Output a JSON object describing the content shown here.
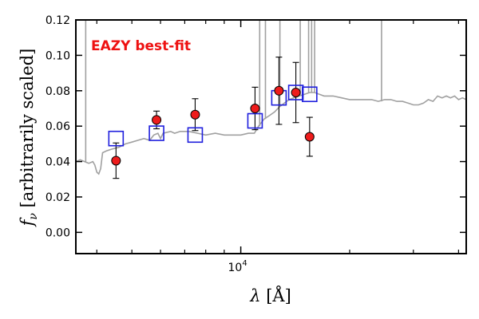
{
  "chart_data": {
    "type": "scatter",
    "annotation": "EAZY best-fit",
    "ylabel_symbol": "f",
    "ylabel_subscript": "ν",
    "ylabel_text": "[arbitrarily scaled]",
    "xlabel_symbol": "λ",
    "xlabel_unit": "[Å]",
    "x_scale": "log",
    "xlim": [
      3500,
      42000
    ],
    "ylim": [
      -0.012,
      0.12
    ],
    "y_ticks": [
      "0.00",
      "0.02",
      "0.04",
      "0.06",
      "0.08",
      "0.10",
      "0.12"
    ],
    "y_tick_values": [
      0.0,
      0.02,
      0.04,
      0.06,
      0.08,
      0.1,
      0.12
    ],
    "x_major_tick": {
      "value": 10000,
      "label_base": "10",
      "label_exp": "4"
    },
    "x_minor_ticks": [
      4000,
      5000,
      6000,
      7000,
      8000,
      9000,
      20000,
      30000,
      40000
    ],
    "model_color": "#a0a0a0",
    "observed_color": "#ee1c1c",
    "model_box_color": "#1f1fdd",
    "annotation_color": "#ee1111",
    "series": [
      {
        "kind": "model_spectrum",
        "points": [
          [
            3500,
            0.04
          ],
          [
            3600,
            0.041
          ],
          [
            3700,
            0.04
          ],
          [
            3800,
            0.039
          ],
          [
            3900,
            0.04
          ],
          [
            3950,
            0.038
          ],
          [
            4000,
            0.034
          ],
          [
            4050,
            0.033
          ],
          [
            4100,
            0.036
          ],
          [
            4150,
            0.045
          ],
          [
            4250,
            0.046
          ],
          [
            4400,
            0.047
          ],
          [
            4600,
            0.048
          ],
          [
            4800,
            0.05
          ],
          [
            5000,
            0.051
          ],
          [
            5200,
            0.052
          ],
          [
            5400,
            0.053
          ],
          [
            5600,
            0.052
          ],
          [
            5750,
            0.055
          ],
          [
            5900,
            0.056
          ],
          [
            6000,
            0.053
          ],
          [
            6100,
            0.056
          ],
          [
            6400,
            0.057
          ],
          [
            6562,
            0.056
          ],
          [
            6800,
            0.057
          ],
          [
            7200,
            0.057
          ],
          [
            7600,
            0.056
          ],
          [
            8000,
            0.055
          ],
          [
            8500,
            0.056
          ],
          [
            9000,
            0.055
          ],
          [
            9500,
            0.055
          ],
          [
            10000,
            0.055
          ],
          [
            10500,
            0.056
          ],
          [
            10900,
            0.056
          ],
          [
            11200,
            0.06
          ],
          [
            11600,
            0.064
          ],
          [
            12000,
            0.066
          ],
          [
            12400,
            0.068
          ],
          [
            12800,
            0.071
          ],
          [
            13200,
            0.073
          ],
          [
            13600,
            0.075
          ],
          [
            14000,
            0.076
          ],
          [
            14500,
            0.077
          ],
          [
            15000,
            0.078
          ],
          [
            15500,
            0.079
          ],
          [
            16000,
            0.079
          ],
          [
            16500,
            0.078
          ],
          [
            17000,
            0.077
          ],
          [
            18000,
            0.077
          ],
          [
            19000,
            0.076
          ],
          [
            20000,
            0.075
          ],
          [
            21000,
            0.075
          ],
          [
            22000,
            0.075
          ],
          [
            23000,
            0.075
          ],
          [
            24000,
            0.074
          ],
          [
            25000,
            0.075
          ],
          [
            26000,
            0.075
          ],
          [
            27000,
            0.074
          ],
          [
            28000,
            0.074
          ],
          [
            29000,
            0.073
          ],
          [
            30000,
            0.072
          ],
          [
            31000,
            0.072
          ],
          [
            32000,
            0.073
          ],
          [
            33000,
            0.075
          ],
          [
            34000,
            0.074
          ],
          [
            35000,
            0.077
          ],
          [
            36000,
            0.076
          ],
          [
            37000,
            0.077
          ],
          [
            38000,
            0.076
          ],
          [
            39000,
            0.077
          ],
          [
            40000,
            0.075
          ],
          [
            41000,
            0.076
          ],
          [
            42000,
            0.075
          ]
        ],
        "emission_lines": [
          [
            3727,
            0.13
          ],
          [
            11280,
            0.13
          ],
          [
            11700,
            0.13
          ],
          [
            12830,
            0.13
          ],
          [
            14600,
            0.13
          ],
          [
            15400,
            0.13
          ],
          [
            15700,
            0.13
          ],
          [
            16000,
            0.13
          ],
          [
            24500,
            0.13
          ]
        ]
      },
      {
        "kind": "template_fluxes",
        "x": [
          4520,
          5850,
          7480,
          10950,
          12750,
          14200,
          15500
        ],
        "y": [
          0.053,
          0.056,
          0.055,
          0.063,
          0.076,
          0.079,
          0.078
        ]
      },
      {
        "kind": "observed_fluxes",
        "x": [
          4520,
          5850,
          7480,
          10950,
          12750,
          14200,
          15500
        ],
        "y": [
          0.0405,
          0.0635,
          0.0665,
          0.07,
          0.08,
          0.079,
          0.054
        ],
        "yerr": [
          0.01,
          0.005,
          0.009,
          0.012,
          0.019,
          0.017,
          0.011
        ]
      }
    ]
  }
}
